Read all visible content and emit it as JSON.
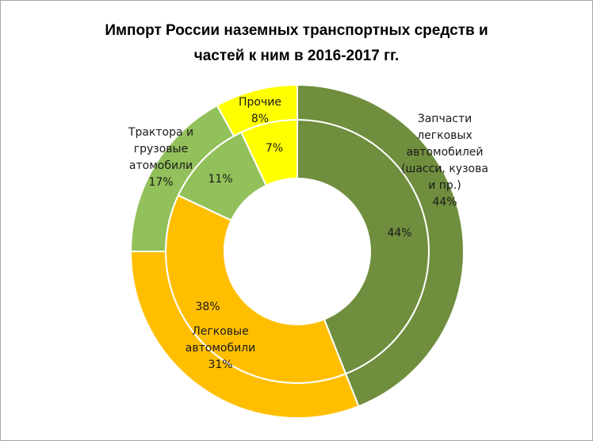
{
  "chart_data": {
    "type": "donut",
    "title_lines": [
      "Импорт России наземных транспортных средств и",
      "частей к ним в 2016-2017 гг."
    ],
    "categories": [
      "Запчасти легковых автомобилей (шасси, кузова и пр.)",
      "Легковые автомобили",
      "Трактора и грузовые атомобили",
      "Прочие"
    ],
    "colors": [
      "#6f8e3e",
      "#ffbf00",
      "#92c05a",
      "#ffff00"
    ],
    "series": [
      {
        "ring": "inner",
        "values": [
          44,
          38,
          11,
          7
        ],
        "labels": [
          "44%",
          "38%",
          "11%",
          "7%"
        ]
      },
      {
        "ring": "outer",
        "values": [
          44,
          31,
          17,
          8
        ],
        "labels": [
          "44%",
          "31%",
          "17%",
          "8%"
        ]
      }
    ],
    "category_label_lines": [
      [
        "Запчасти",
        "легковых",
        "автомобилей",
        "(шасси, кузова",
        "и пр.)"
      ],
      [
        "Легковые",
        "автомобили"
      ],
      [
        "Трактора и",
        "грузовые",
        "атомобили"
      ],
      [
        "Прочие"
      ]
    ]
  }
}
